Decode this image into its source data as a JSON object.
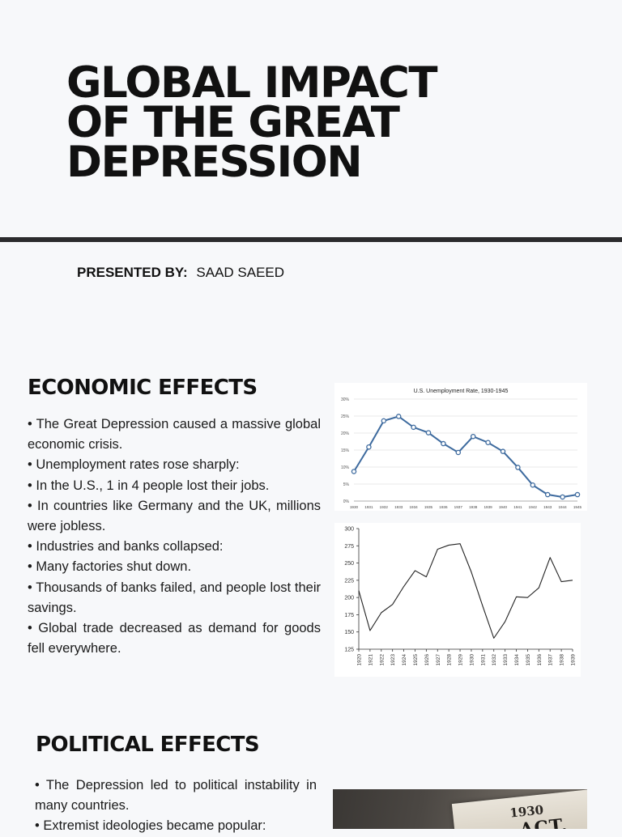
{
  "title": {
    "line1": "GLOBAL IMPACT",
    "line2": "OF THE GREAT",
    "line3": "DEPRESSION"
  },
  "presenter": {
    "label": "PRESENTED BY:",
    "name": "SAAD SAEED"
  },
  "economic": {
    "heading": "ECONOMIC EFFECTS",
    "bullets": [
      "• The Great Depression caused a massive global economic crisis.",
      "• Unemployment rates rose sharply:",
      "• In the U.S., 1 in 4 people lost their jobs.",
      "• In countries like Germany and the UK, millions were jobless.",
      "• Industries and banks collapsed:",
      "• Many factories shut down.",
      "• Thousands of banks failed, and people lost their savings.",
      "• Global trade decreased as demand for goods fell everywhere."
    ]
  },
  "political": {
    "heading": "POLITICAL EFFECTS",
    "bullets": [
      "• The Depression led to political instability in many countries.",
      "• Extremist ideologies became popular:"
    ],
    "photo": {
      "year": "1930",
      "headline": "ACT."
    }
  },
  "chart_data": [
    {
      "type": "line",
      "title": "U.S. Unemployment Rate, 1930-1945",
      "x": [
        "1930",
        "1931",
        "1932",
        "1933",
        "1934",
        "1935",
        "1936",
        "1937",
        "1938",
        "1939",
        "1940",
        "1941",
        "1942",
        "1943",
        "1944",
        "1945"
      ],
      "values": [
        8.7,
        15.9,
        23.6,
        24.9,
        21.7,
        20.1,
        16.9,
        14.3,
        19.0,
        17.2,
        14.6,
        9.9,
        4.7,
        1.9,
        1.2,
        1.9
      ],
      "yticks": [
        "0%",
        "5%",
        "10%",
        "15%",
        "20%",
        "25%",
        "30%"
      ],
      "ylim": [
        0,
        30
      ],
      "grid": true,
      "markers": true,
      "color": "#3d6a9e"
    },
    {
      "type": "line",
      "title": "",
      "x": [
        "1920",
        "1921",
        "1922",
        "1923",
        "1924",
        "1925",
        "1926",
        "1927",
        "1928",
        "1929",
        "1930",
        "1931",
        "1932",
        "1933",
        "1934",
        "1935",
        "1936",
        "1937",
        "1938",
        "1939"
      ],
      "values": [
        210,
        152,
        178,
        190,
        216,
        239,
        230,
        270,
        276,
        278,
        237,
        188,
        141,
        165,
        201,
        200,
        214,
        258,
        223,
        225
      ],
      "yticks": [
        "125",
        "150",
        "175",
        "200",
        "225",
        "250",
        "275",
        "300"
      ],
      "ylim": [
        125,
        300
      ],
      "grid": false,
      "color": "#222222"
    }
  ]
}
